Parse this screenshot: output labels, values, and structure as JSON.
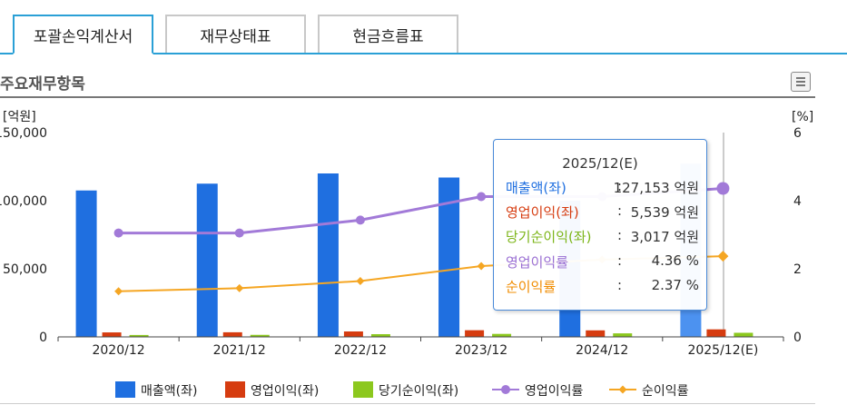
{
  "tabs": [
    {
      "label": "포괄손익계산서",
      "active": true
    },
    {
      "label": "재무상태표",
      "active": false
    },
    {
      "label": "현금흐름표",
      "active": false
    }
  ],
  "section_title": "주요재무항목",
  "menu_icon": "list-icon",
  "colors": {
    "revenue": "#1f6fe0",
    "revenue_estimate": "#4c92f0",
    "operating_income": "#d63c10",
    "net_income": "#8cc81e",
    "operating_margin": "#a27ad8",
    "net_margin": "#f5a623",
    "tab_accent": "#2aa0d6"
  },
  "chart_data": {
    "type": "bar",
    "categories": [
      "2020/12",
      "2021/12",
      "2022/12",
      "2023/12",
      "2024/12",
      "2025/12(E)"
    ],
    "y_left": {
      "label": "[억원]",
      "ylim": [
        0,
        150000
      ],
      "ticks": [
        "150,000",
        "100,000",
        "50,000",
        "0"
      ],
      "tick_values": [
        150000,
        100000,
        50000,
        0
      ]
    },
    "y_right": {
      "label": "[%]",
      "ylim": [
        0,
        6
      ],
      "ticks": [
        "6",
        "4",
        "2",
        "0"
      ],
      "tick_values": [
        6,
        4,
        2,
        0
      ]
    },
    "series": [
      {
        "name": "매출액(좌)",
        "type": "bar",
        "axis": "left",
        "values": [
          107500,
          112500,
          120000,
          117000,
          100000,
          127153
        ]
      },
      {
        "name": "영업이익(좌)",
        "type": "bar",
        "axis": "left",
        "values": [
          3300,
          3400,
          4000,
          4900,
          4800,
          5539
        ]
      },
      {
        "name": "당기순이익(좌)",
        "type": "bar",
        "axis": "left",
        "values": [
          1400,
          1500,
          2000,
          2200,
          2600,
          3017
        ]
      },
      {
        "name": "영업이익률",
        "type": "line",
        "axis": "right",
        "values": [
          3.05,
          3.05,
          3.43,
          4.12,
          4.12,
          4.36
        ]
      },
      {
        "name": "순이익률",
        "type": "line",
        "axis": "right",
        "values": [
          1.34,
          1.43,
          1.64,
          2.08,
          2.27,
          2.37
        ]
      }
    ],
    "legend": {
      "position": "bottom"
    },
    "grid": false,
    "hover_category": "2025/12(E)",
    "tooltip": {
      "title": "2025/12(E)",
      "rows": [
        {
          "label": "매출액(좌)",
          "colon": ":",
          "value": "127,153 억원"
        },
        {
          "label": "영업이익(좌)",
          "colon": ":",
          "value": "5,539 억원"
        },
        {
          "label": "당기순이익(좌)",
          "colon": ":",
          "value": "3,017 억원"
        },
        {
          "label": "영업이익률",
          "colon": ":",
          "value": "4.36 %"
        },
        {
          "label": "순이익률",
          "colon": ":",
          "value": "2.37 %"
        }
      ]
    }
  }
}
